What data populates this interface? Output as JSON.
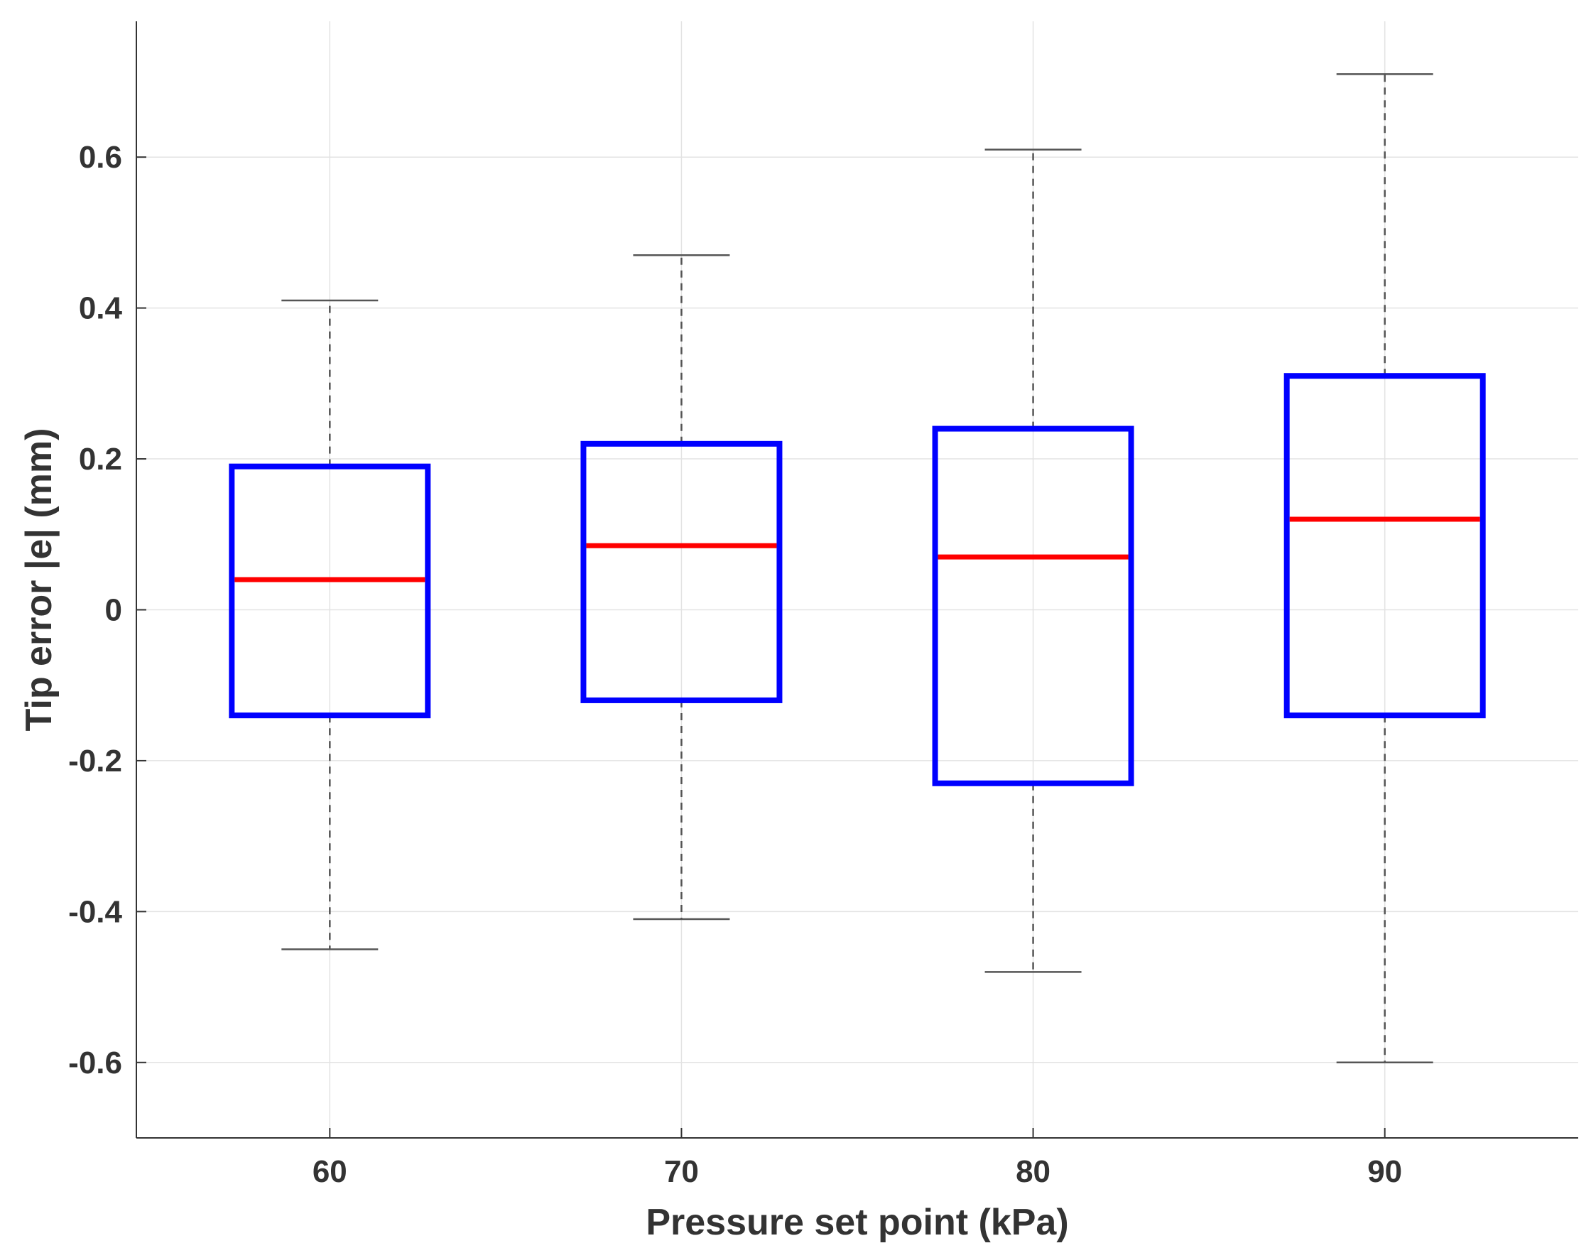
{
  "chart_data": {
    "type": "box",
    "title": "",
    "xlabel": "Pressure set point (kPa)",
    "ylabel": "Tip error  |e|  (mm)",
    "ylim": [
      -0.7,
      0.78
    ],
    "categories": [
      "60",
      "70",
      "80",
      "90"
    ],
    "yticks": [
      {
        "value": -0.6,
        "label": "-0.6"
      },
      {
        "value": -0.4,
        "label": "-0.4"
      },
      {
        "value": -0.2,
        "label": "-0.2"
      },
      {
        "value": 0,
        "label": "0"
      },
      {
        "value": 0.2,
        "label": "0.2"
      },
      {
        "value": 0.4,
        "label": "0.4"
      },
      {
        "value": 0.6,
        "label": "0.6"
      }
    ],
    "boxes": [
      {
        "category": "60",
        "whisker_low": -0.45,
        "q1": -0.14,
        "median": 0.04,
        "q3": 0.19,
        "whisker_high": 0.41
      },
      {
        "category": "70",
        "whisker_low": -0.41,
        "q1": -0.12,
        "median": 0.085,
        "q3": 0.22,
        "whisker_high": 0.47
      },
      {
        "category": "80",
        "whisker_low": -0.48,
        "q1": -0.23,
        "median": 0.07,
        "q3": 0.24,
        "whisker_high": 0.61
      },
      {
        "category": "90",
        "whisker_low": -0.6,
        "q1": -0.14,
        "median": 0.12,
        "q3": 0.31,
        "whisker_high": 0.71
      }
    ],
    "grid": true,
    "colors": {
      "box": "#0000ff",
      "median": "#ff0000",
      "whisker": "#555555",
      "grid": "#e3e3e3",
      "axis": "#333333"
    }
  }
}
